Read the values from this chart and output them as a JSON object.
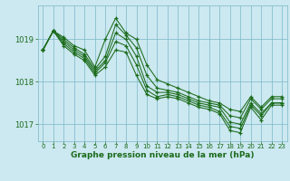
{
  "title": "Graphe pression niveau de la mer (hPa)",
  "bg_color": "#cce8f0",
  "grid_color": "#7ab8c8",
  "line_color": "#1a6b1a",
  "marker": "+",
  "xlim": [
    -0.5,
    23.5
  ],
  "ylim": [
    1016.6,
    1019.8
  ],
  "yticks": [
    1017,
    1018,
    1019
  ],
  "xticks": [
    0,
    1,
    2,
    3,
    4,
    5,
    6,
    7,
    8,
    9,
    10,
    11,
    12,
    13,
    14,
    15,
    16,
    17,
    18,
    19,
    20,
    21,
    22,
    23
  ],
  "lines": [
    {
      "x": [
        0,
        1,
        2,
        3,
        4,
        5,
        6,
        7,
        8,
        9,
        10,
        11,
        12,
        13,
        14,
        15,
        16,
        17,
        18,
        19,
        20,
        21,
        22,
        23
      ],
      "y": [
        1018.75,
        1019.2,
        1019.05,
        1018.85,
        1018.75,
        1018.35,
        1019.0,
        1019.5,
        1019.15,
        1019.0,
        1018.4,
        1018.05,
        1017.95,
        1017.85,
        1017.75,
        1017.65,
        1017.55,
        1017.5,
        1017.35,
        1017.3,
        1017.65,
        1017.4,
        1017.65,
        1017.65
      ]
    },
    {
      "x": [
        0,
        1,
        2,
        3,
        4,
        5,
        6,
        7,
        8,
        9,
        10,
        11,
        12,
        13,
        14,
        15,
        16,
        17,
        18,
        19,
        20,
        21,
        22,
        23
      ],
      "y": [
        1018.75,
        1019.2,
        1019.0,
        1018.8,
        1018.65,
        1018.3,
        1018.6,
        1019.35,
        1019.1,
        1018.8,
        1018.15,
        1017.85,
        1017.8,
        1017.75,
        1017.65,
        1017.55,
        1017.5,
        1017.45,
        1017.2,
        1017.15,
        1017.6,
        1017.35,
        1017.6,
        1017.6
      ]
    },
    {
      "x": [
        0,
        1,
        2,
        3,
        4,
        5,
        6,
        7,
        8,
        9,
        10,
        11,
        12,
        13,
        14,
        15,
        16,
        17,
        18,
        19,
        20,
        21,
        22,
        23
      ],
      "y": [
        1018.75,
        1019.2,
        1018.95,
        1018.75,
        1018.6,
        1018.25,
        1018.5,
        1019.15,
        1019.0,
        1018.6,
        1017.9,
        1017.75,
        1017.75,
        1017.7,
        1017.6,
        1017.5,
        1017.45,
        1017.4,
        1017.05,
        1017.0,
        1017.5,
        1017.25,
        1017.5,
        1017.5
      ]
    },
    {
      "x": [
        0,
        1,
        2,
        3,
        4,
        5,
        6,
        7,
        8,
        9,
        10,
        11,
        12,
        13,
        14,
        15,
        16,
        17,
        18,
        19,
        20,
        21,
        22,
        23
      ],
      "y": [
        1018.75,
        1019.2,
        1018.9,
        1018.7,
        1018.55,
        1018.2,
        1018.45,
        1018.95,
        1018.85,
        1018.4,
        1017.8,
        1017.65,
        1017.7,
        1017.65,
        1017.55,
        1017.45,
        1017.4,
        1017.3,
        1016.95,
        1016.9,
        1017.45,
        1017.2,
        1017.5,
        1017.5
      ]
    },
    {
      "x": [
        0,
        1,
        2,
        3,
        4,
        5,
        6,
        7,
        8,
        9,
        10,
        11,
        12,
        13,
        14,
        15,
        16,
        17,
        18,
        19,
        20,
        21,
        22,
        23
      ],
      "y": [
        1018.75,
        1019.2,
        1018.85,
        1018.65,
        1018.5,
        1018.15,
        1018.35,
        1018.75,
        1018.7,
        1018.15,
        1017.7,
        1017.6,
        1017.65,
        1017.6,
        1017.5,
        1017.4,
        1017.35,
        1017.25,
        1016.85,
        1016.8,
        1017.4,
        1017.1,
        1017.45,
        1017.45
      ]
    }
  ]
}
